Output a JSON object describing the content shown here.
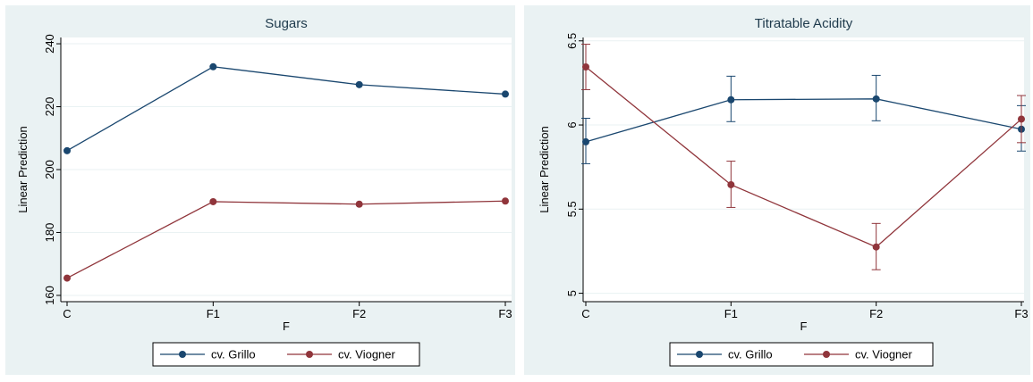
{
  "colors": {
    "background": "#eaf2f3",
    "plot_region": "#ffffff",
    "gridline": "#eaf2f3",
    "series_grillo": "#1a476f",
    "series_viogner": "#90353b"
  },
  "chart_data": [
    {
      "type": "line",
      "title": "Sugars",
      "xlabel": "F",
      "ylabel": "Linear Prediction",
      "categories": [
        "C",
        "F1",
        "F2",
        "F3"
      ],
      "yticks": [
        160,
        180,
        200,
        220,
        240
      ],
      "ylim": [
        158,
        242
      ],
      "grid": true,
      "legend": "bottom",
      "series": [
        {
          "name": "cv. Grillo",
          "color": "#1a476f",
          "values": [
            206,
            232.7,
            227,
            224
          ]
        },
        {
          "name": "cv. Viogner",
          "color": "#90353b",
          "values": [
            165.5,
            189.8,
            189,
            190
          ]
        }
      ]
    },
    {
      "type": "line",
      "title": "Titratable Acidity",
      "xlabel": "F",
      "ylabel": "Linear Prediction",
      "categories": [
        "C",
        "F1",
        "F2",
        "F3"
      ],
      "yticks": [
        5,
        5.5,
        6,
        6.5
      ],
      "ytick_labels": [
        "5",
        "5.5",
        "6",
        "6.5"
      ],
      "ylim": [
        4.95,
        6.52
      ],
      "grid": true,
      "legend": "bottom",
      "error_bars": true,
      "series": [
        {
          "name": "cv. Grillo",
          "color": "#1a476f",
          "values": [
            5.9,
            6.15,
            6.155,
            5.975
          ],
          "lower": [
            5.77,
            6.02,
            6.025,
            5.845
          ],
          "upper": [
            6.04,
            6.29,
            6.295,
            6.115
          ]
        },
        {
          "name": "cv. Viogner",
          "color": "#90353b",
          "values": [
            6.345,
            5.645,
            5.275,
            6.035
          ],
          "lower": [
            6.21,
            5.51,
            5.14,
            5.895
          ],
          "upper": [
            6.48,
            5.785,
            5.415,
            6.175
          ]
        }
      ]
    }
  ]
}
